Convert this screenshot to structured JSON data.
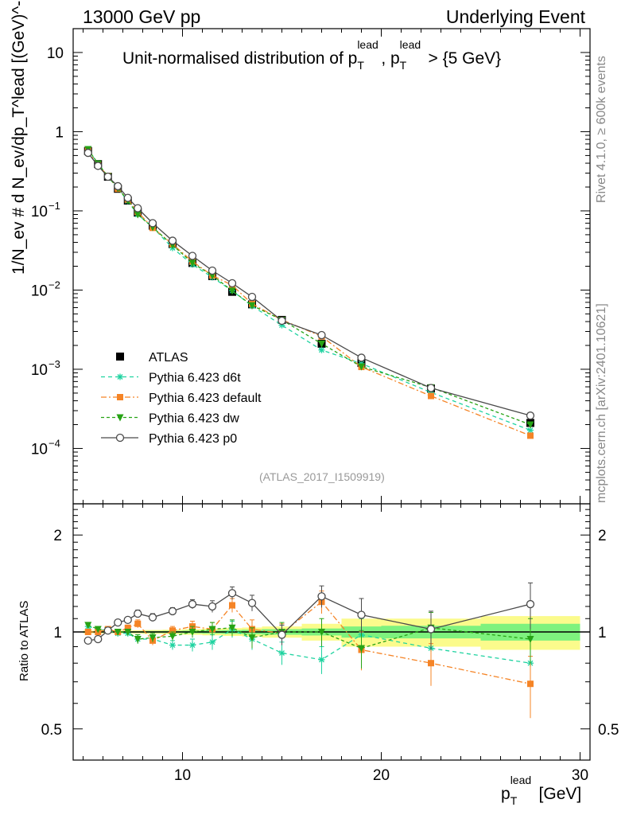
{
  "header": {
    "left": "13000 GeV pp",
    "right": "Underlying Event",
    "rivet": "Rivet 4.1.0, ≥ 600k events",
    "mcplots": "mcplots.cern.ch [arXiv:2401.10621]",
    "analysis_id": "(ATLAS_2017_I1509919)"
  },
  "colors": {
    "ATLAS": "#000000",
    "d6t": "#1fd3a0",
    "default": "#f58426",
    "dw": "#27a315",
    "p0": "#4a4a4a",
    "band_inner": "#7ef27e",
    "band_outer": "#fbfb8c"
  },
  "chart_data": [
    {
      "type": "scatter",
      "panel": "main",
      "title": "Unit-normalised distribution of pT^lead, pT^lead > {5 GeV}",
      "title_parts": {
        "a": "Unit-normalised distribution of p",
        "sup1": "lead",
        "sub1": "T",
        "b": ", p",
        "sup2": "lead",
        "sub2": "T",
        "c": " > {5 GeV}"
      },
      "xlabel": "pT^lead [GeV]",
      "xlabel_parts": {
        "a": "p",
        "sup": "lead",
        "sub": "T",
        "b": " [GeV]"
      },
      "ylabel": "1/Nev # d Nev/dpT^lead [(GeV)^-1]",
      "ylabel_text": "1/N_ev # d N_ev/dp_T^lead [(GeV)^-1]",
      "yscale": "log",
      "xlim": [
        4.5,
        30.5
      ],
      "ylim": [
        2e-05,
        20
      ],
      "xticks": [
        10,
        20,
        30
      ],
      "yticks": [
        "10^-4",
        "10^-3",
        "10^-2",
        "10^-1",
        "1",
        "10"
      ],
      "legend_position": "lower-left",
      "legend": [
        "ATLAS",
        "Pythia 6.423 d6t",
        "Pythia 6.423 default",
        "Pythia 6.423 dw",
        "Pythia 6.423 p0"
      ],
      "x": [
        5.25,
        5.75,
        6.25,
        6.75,
        7.25,
        7.75,
        8.5,
        9.5,
        10.5,
        11.5,
        12.5,
        13.5,
        15,
        17,
        19,
        22.5,
        27.5
      ],
      "series": [
        {
          "name": "ATLAS",
          "marker": "square",
          "values": [
            0.57,
            0.39,
            0.27,
            0.19,
            0.135,
            0.095,
            0.065,
            0.038,
            0.022,
            0.015,
            0.0095,
            0.0066,
            0.0042,
            0.0021,
            0.0012,
            0.00057,
            0.00021
          ]
        },
        {
          "name": "Pythia 6.423 d6t",
          "marker": "star",
          "values": [
            0.59,
            0.395,
            0.27,
            0.19,
            0.133,
            0.09,
            0.062,
            0.034,
            0.021,
            0.0145,
            0.0098,
            0.0063,
            0.0036,
            0.00175,
            0.00118,
            0.00051,
            0.00017
          ]
        },
        {
          "name": "Pythia 6.423 default",
          "marker": "square-open-filled",
          "values": [
            0.58,
            0.38,
            0.276,
            0.19,
            0.139,
            0.097,
            0.061,
            0.038,
            0.023,
            0.0153,
            0.0115,
            0.0067,
            0.0042,
            0.0026,
            0.00107,
            0.00046,
            0.000145
          ]
        },
        {
          "name": "Pythia 6.423 dw",
          "marker": "triangle-down",
          "values": [
            0.6,
            0.395,
            0.273,
            0.193,
            0.135,
            0.09,
            0.062,
            0.037,
            0.022,
            0.0153,
            0.0098,
            0.0064,
            0.0042,
            0.0021,
            0.00108,
            0.00059,
            0.0002
          ]
        },
        {
          "name": "Pythia 6.423 p0",
          "marker": "circle-open",
          "values": [
            0.54,
            0.37,
            0.27,
            0.205,
            0.146,
            0.108,
            0.07,
            0.042,
            0.027,
            0.0176,
            0.0122,
            0.0082,
            0.0041,
            0.0027,
            0.0014,
            0.00058,
            0.00026
          ]
        }
      ]
    },
    {
      "type": "scatter",
      "panel": "ratio",
      "ylabel": "Ratio to ATLAS",
      "yscale": "log",
      "ylim": [
        0.4,
        2.5
      ],
      "yticks": [
        "0.5",
        "1",
        "2"
      ],
      "x": [
        5.25,
        5.75,
        6.25,
        6.75,
        7.25,
        7.75,
        8.5,
        9.5,
        10.5,
        11.5,
        12.5,
        13.5,
        15,
        17,
        19,
        22.5,
        27.5
      ],
      "band_x_edges": [
        5,
        5.5,
        6,
        6.5,
        7,
        7.5,
        8,
        9,
        10,
        11,
        12,
        13,
        14,
        16,
        18,
        20,
        25,
        30
      ],
      "band_inner": [
        0.005,
        0.005,
        0.005,
        0.005,
        0.005,
        0.005,
        0.007,
        0.008,
        0.01,
        0.012,
        0.014,
        0.016,
        0.02,
        0.025,
        0.04,
        0.045,
        0.06
      ],
      "band_outer": [
        0.01,
        0.01,
        0.01,
        0.01,
        0.01,
        0.012,
        0.014,
        0.016,
        0.02,
        0.024,
        0.028,
        0.032,
        0.04,
        0.06,
        0.1,
        0.1,
        0.12
      ],
      "series": [
        {
          "name": "Pythia 6.423 d6t",
          "values": [
            1.04,
            1.02,
            1.01,
            0.99,
            0.99,
            0.95,
            0.95,
            0.91,
            0.91,
            0.93,
            1.02,
            0.95,
            0.86,
            0.82,
            0.98,
            0.89,
            0.8
          ],
          "errors": [
            0.02,
            0.02,
            0.02,
            0.02,
            0.02,
            0.03,
            0.03,
            0.03,
            0.04,
            0.05,
            0.06,
            0.07,
            0.07,
            0.08,
            0.12,
            0.12,
            0.15
          ]
        },
        {
          "name": "Pythia 6.423 default",
          "values": [
            1.0,
            1.0,
            1.02,
            1.0,
            1.03,
            1.06,
            0.94,
            1.01,
            1.04,
            1.02,
            1.21,
            1.02,
            0.99,
            1.24,
            0.88,
            0.8,
            0.69
          ],
          "errors": [
            0.02,
            0.02,
            0.02,
            0.02,
            0.02,
            0.03,
            0.03,
            0.03,
            0.04,
            0.05,
            0.06,
            0.07,
            0.07,
            0.1,
            0.12,
            0.12,
            0.15
          ]
        },
        {
          "name": "Pythia 6.423 dw",
          "values": [
            1.05,
            1.02,
            1.01,
            1.0,
            1.0,
            0.95,
            0.96,
            0.97,
            1.0,
            1.02,
            1.03,
            0.96,
            1.0,
            1.0,
            0.89,
            1.03,
            0.95
          ],
          "errors": [
            0.02,
            0.02,
            0.02,
            0.02,
            0.02,
            0.03,
            0.03,
            0.03,
            0.04,
            0.05,
            0.06,
            0.07,
            0.07,
            0.1,
            0.12,
            0.12,
            0.15
          ]
        },
        {
          "name": "Pythia 6.423 p0",
          "values": [
            0.94,
            0.95,
            1.01,
            1.07,
            1.09,
            1.14,
            1.11,
            1.16,
            1.22,
            1.2,
            1.32,
            1.23,
            0.98,
            1.29,
            1.13,
            1.02,
            1.22
          ],
          "errors": [
            0.02,
            0.02,
            0.02,
            0.02,
            0.02,
            0.03,
            0.03,
            0.03,
            0.04,
            0.05,
            0.06,
            0.07,
            0.07,
            0.1,
            0.14,
            0.14,
            0.2
          ]
        }
      ]
    }
  ]
}
